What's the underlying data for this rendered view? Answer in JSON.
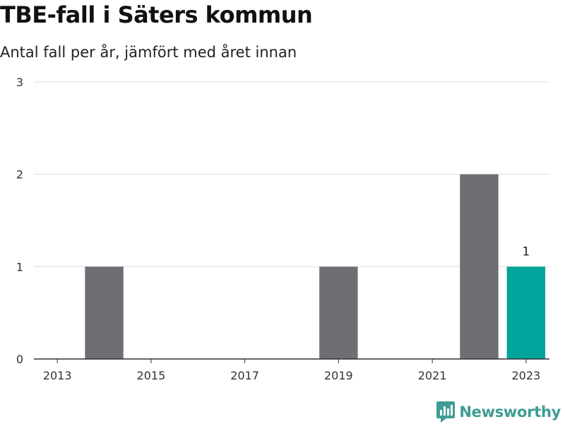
{
  "header": {
    "title": "TBE-fall i Säters kommun",
    "subtitle": "Antal fall per år, jämfört med året innan"
  },
  "brand": {
    "name": "Newsworthy",
    "icon": "bar-chart-logo-icon",
    "color": "#3f9c94"
  },
  "colors": {
    "bar": "#6e6e74",
    "highlight": "#00a49a",
    "grid": "#dddddd",
    "axis": "#333333"
  },
  "chart_data": {
    "type": "bar",
    "categories": [
      "2013",
      "2014",
      "2015",
      "2016",
      "2017",
      "2018",
      "2019",
      "2020",
      "2021",
      "2022",
      "2023"
    ],
    "values": [
      0,
      1,
      0,
      0,
      0,
      0,
      1,
      0,
      0,
      2,
      1
    ],
    "highlight_index": 10,
    "data_labels": [
      {
        "category": "2023",
        "text": "1"
      }
    ],
    "x_tick_labels": [
      "2013",
      "2015",
      "2017",
      "2019",
      "2021",
      "2023"
    ],
    "y_ticks": [
      0,
      1,
      2,
      3
    ],
    "ylim": [
      0,
      3
    ],
    "grid": true,
    "legend": "none"
  }
}
